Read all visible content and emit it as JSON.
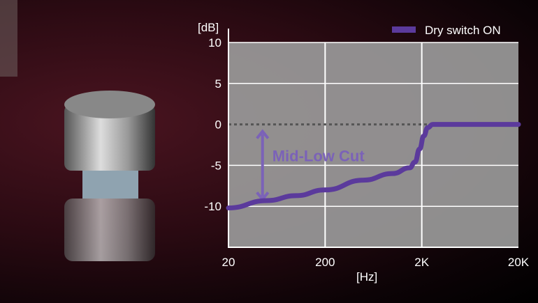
{
  "chart_data": {
    "type": "line",
    "xlabel": "[Hz]",
    "ylabel": "[dB]",
    "x_scale": "log",
    "xlim": [
      20,
      20000
    ],
    "ylim": [
      -15,
      10
    ],
    "x_ticks": [
      {
        "value": 20,
        "label": "20"
      },
      {
        "value": 200,
        "label": "200"
      },
      {
        "value": 2000,
        "label": "2K"
      },
      {
        "value": 20000,
        "label": "20K"
      }
    ],
    "y_ticks": [
      {
        "value": 10,
        "label": "10"
      },
      {
        "value": 5,
        "label": "5"
      },
      {
        "value": 0,
        "label": "0"
      },
      {
        "value": -5,
        "label": "-5"
      },
      {
        "value": -10,
        "label": "-10"
      }
    ],
    "grid": true,
    "legend_position": "top-right",
    "series": [
      {
        "name": "Dry switch ON",
        "color": "#5b3a9c",
        "x": [
          20,
          50,
          100,
          200,
          500,
          1000,
          1500,
          1700,
          1900,
          2100,
          2300,
          2600,
          5000,
          20000
        ],
        "y": [
          -10.2,
          -9.3,
          -8.7,
          -8.0,
          -6.8,
          -6.0,
          -5.3,
          -4.6,
          -3.0,
          -1.4,
          -0.4,
          0,
          0,
          0
        ]
      }
    ],
    "reference_line": {
      "y": 0,
      "style": "dotted"
    },
    "annotation": {
      "text": "Mid-Low Cut",
      "from_y": 0,
      "to_y": -10,
      "x": 45,
      "color": "#7b62b8"
    },
    "plot_background": "#9a9a9a"
  }
}
